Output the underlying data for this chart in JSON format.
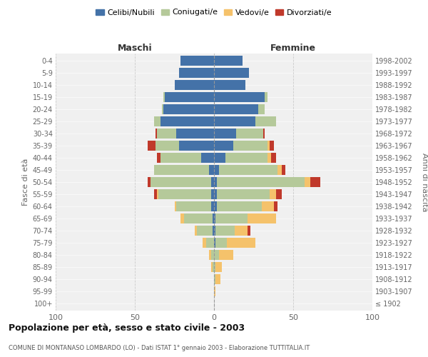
{
  "age_groups": [
    "100+",
    "95-99",
    "90-94",
    "85-89",
    "80-84",
    "75-79",
    "70-74",
    "65-69",
    "60-64",
    "55-59",
    "50-54",
    "45-49",
    "40-44",
    "35-39",
    "30-34",
    "25-29",
    "20-24",
    "15-19",
    "10-14",
    "5-9",
    "0-4"
  ],
  "birth_years": [
    "≤ 1902",
    "1903-1907",
    "1908-1912",
    "1913-1917",
    "1918-1922",
    "1923-1927",
    "1928-1932",
    "1933-1937",
    "1938-1942",
    "1943-1947",
    "1948-1952",
    "1953-1957",
    "1958-1962",
    "1963-1967",
    "1968-1972",
    "1973-1977",
    "1978-1982",
    "1983-1987",
    "1988-1992",
    "1993-1997",
    "1998-2002"
  ],
  "maschi": {
    "celibi": [
      0,
      0,
      0,
      0,
      0,
      0,
      1,
      1,
      2,
      2,
      2,
      3,
      8,
      22,
      24,
      34,
      32,
      31,
      25,
      22,
      21
    ],
    "coniugati": [
      0,
      0,
      0,
      1,
      2,
      5,
      10,
      18,
      22,
      33,
      38,
      35,
      26,
      15,
      12,
      4,
      1,
      1,
      0,
      0,
      0
    ],
    "vedovi": [
      0,
      0,
      0,
      1,
      1,
      2,
      1,
      2,
      1,
      1,
      0,
      0,
      0,
      0,
      0,
      0,
      0,
      0,
      0,
      0,
      0
    ],
    "divorziati": [
      0,
      0,
      0,
      0,
      0,
      0,
      0,
      0,
      0,
      2,
      2,
      0,
      2,
      5,
      1,
      0,
      0,
      0,
      0,
      0,
      0
    ]
  },
  "femmine": {
    "nubili": [
      0,
      0,
      0,
      0,
      0,
      1,
      1,
      1,
      2,
      2,
      2,
      3,
      7,
      12,
      14,
      26,
      28,
      32,
      20,
      22,
      18
    ],
    "coniugate": [
      0,
      0,
      1,
      1,
      3,
      7,
      12,
      20,
      28,
      33,
      55,
      37,
      27,
      22,
      17,
      13,
      4,
      2,
      0,
      0,
      0
    ],
    "vedove": [
      0,
      1,
      3,
      4,
      9,
      18,
      8,
      18,
      8,
      4,
      4,
      3,
      2,
      1,
      0,
      0,
      0,
      0,
      0,
      0,
      0
    ],
    "divorziate": [
      0,
      0,
      0,
      0,
      0,
      0,
      2,
      0,
      2,
      4,
      6,
      2,
      3,
      3,
      1,
      0,
      0,
      0,
      0,
      0,
      0
    ]
  },
  "colors": {
    "celibi": "#4472a8",
    "coniugati": "#b5c99a",
    "vedovi": "#f5c26b",
    "divorziati": "#c0392b"
  },
  "xlim": 100,
  "title": "Popolazione per età, sesso e stato civile - 2003",
  "subtitle": "COMUNE DI MONTANASO LOMBARDO (LO) - Dati ISTAT 1° gennaio 2003 - Elaborazione TUTTITALIA.IT",
  "ylabel": "Fasce di età",
  "ylabel_right": "Anni di nascita",
  "maschi_label": "Maschi",
  "femmine_label": "Femmine",
  "legend_labels": [
    "Celibi/Nubili",
    "Coniugati/e",
    "Vedovi/e",
    "Divorziati/e"
  ],
  "bg_color": "#f0f0f0"
}
